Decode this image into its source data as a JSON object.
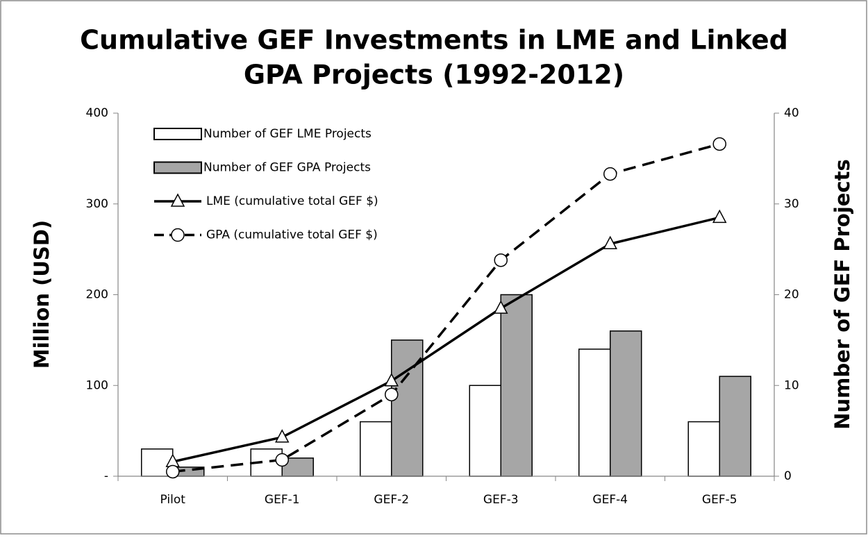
{
  "chart_data": {
    "type": "bar",
    "title": [
      "Cumulative GEF Investments in LME and Linked",
      "GPA Projects (1992-2012)"
    ],
    "ylabel": "Million (USD)",
    "y2label": "Number of GEF Projects",
    "categories": [
      "Pilot",
      "GEF-1",
      "GEF-2",
      "GEF-3",
      "GEF-4",
      "GEF-5"
    ],
    "series": [
      {
        "name": "Number of GEF LME Projects",
        "type": "bar",
        "axis": "y2",
        "color": "#ffffff",
        "values": [
          3,
          3,
          6,
          10,
          14,
          6
        ]
      },
      {
        "name": "Number of GEF GPA Projects",
        "type": "bar",
        "axis": "y2",
        "color": "#a6a6a6",
        "values": [
          1,
          2,
          15,
          20,
          16,
          11
        ]
      },
      {
        "name": "LME (cumulative total GEF $)",
        "type": "line",
        "color": "#000000",
        "dashed": false,
        "marker": "triangle",
        "values": [
          16,
          43,
          105,
          185,
          256,
          285
        ]
      },
      {
        "name": "GPA (cumulative total GEF $)",
        "type": "line",
        "color": "#000000",
        "dashed": true,
        "marker": "circle",
        "values": [
          5,
          18,
          90,
          238,
          333,
          366
        ]
      }
    ],
    "ylim": [
      0,
      400
    ],
    "yticks": [
      {
        "value": 0,
        "label": "-"
      },
      100,
      200,
      300,
      400
    ],
    "y2lim": [
      0,
      40
    ],
    "y2ticks": [
      0,
      10,
      20,
      30,
      40
    ],
    "legend": "upper left"
  }
}
